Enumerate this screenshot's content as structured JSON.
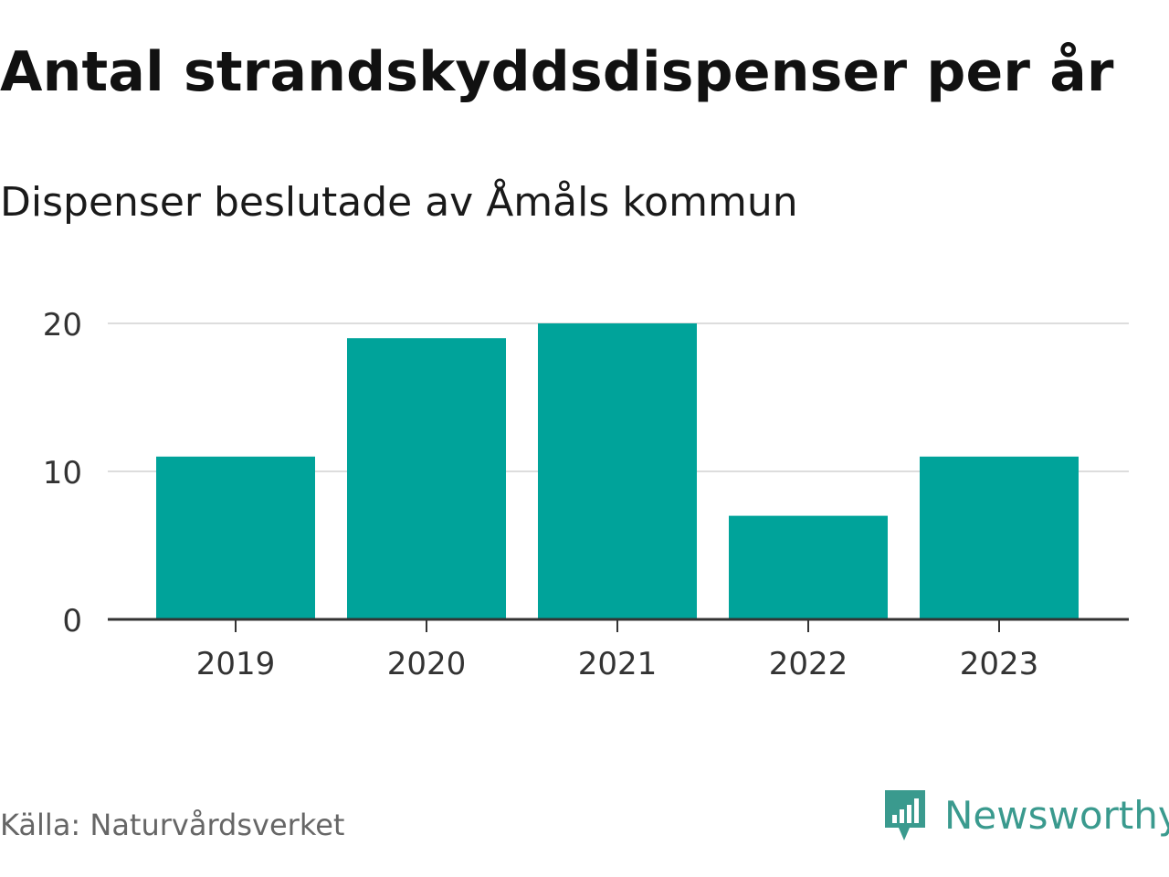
{
  "title": "Antal strandskyddsdispenser per år",
  "subtitle": "Dispenser beslutade av Åmåls kommun",
  "source": "Källa: Naturvårdsverket",
  "brand": {
    "name": "Newsworthy",
    "icon": "bar-chart-speech-bubble-icon",
    "color": "#3a9a8e"
  },
  "colors": {
    "bar": "#00a39a",
    "grid": "#dddddd",
    "axis": "#333333"
  },
  "chart_data": {
    "type": "bar",
    "title": "Antal strandskyddsdispenser per år",
    "subtitle": "Dispenser beslutade av Åmåls kommun",
    "categories": [
      "2019",
      "2020",
      "2021",
      "2022",
      "2023"
    ],
    "values": [
      11,
      19,
      20,
      7,
      11
    ],
    "ylim": [
      0,
      20
    ],
    "yticks": [
      0,
      10,
      20
    ],
    "ytick_labels": [
      "0",
      "10",
      "20"
    ],
    "xlabel": "",
    "ylabel": "",
    "grid": true,
    "legend": "none"
  }
}
